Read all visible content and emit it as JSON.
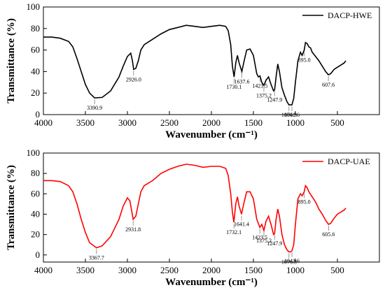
{
  "chart_data": [
    {
      "type": "line",
      "xlabel": "Wavenumber (cm⁻¹)",
      "ylabel": "Transmittance (%)",
      "xlim": [
        4000,
        0
      ],
      "xticks": [
        4000,
        3500,
        3000,
        2500,
        2000,
        1500,
        1000,
        500
      ],
      "ylim": [
        0,
        100
      ],
      "yticks": [
        0,
        20,
        40,
        60,
        80,
        100
      ],
      "legend": "upper right",
      "x": [
        4000,
        3900,
        3800,
        3700,
        3650,
        3600,
        3550,
        3500,
        3450,
        3390.9,
        3300,
        3200,
        3100,
        3050,
        3000,
        2960,
        2940,
        2926,
        2900,
        2870,
        2840,
        2800,
        2700,
        2600,
        2500,
        2400,
        2300,
        2200,
        2100,
        2000,
        1900,
        1830,
        1800,
        1770,
        1750,
        1730.1,
        1710,
        1690,
        1670,
        1637.6,
        1610,
        1580,
        1540,
        1500,
        1460,
        1440,
        1421.5,
        1400,
        1375.2,
        1350,
        1320,
        1290,
        1260,
        1247.9,
        1230,
        1210,
        1190,
        1160,
        1130,
        1100,
        1076.3,
        1060,
        1041.6,
        1020,
        1000,
        970,
        940,
        920,
        895,
        880,
        860,
        840,
        820,
        800,
        760,
        720,
        680,
        640,
        607.6,
        580,
        540,
        500,
        460,
        420,
        400
      ],
      "series": [
        {
          "name": "DACP-HWE",
          "color": "#000000",
          "values": [
            72,
            72,
            71,
            68,
            63,
            52,
            40,
            28,
            20,
            15.5,
            16,
            22,
            35,
            45,
            54,
            57,
            50,
            42,
            43,
            50,
            60,
            65,
            70,
            75,
            79,
            81,
            83,
            82,
            81,
            82,
            83,
            82,
            78,
            65,
            45,
            35,
            48,
            55,
            48,
            40,
            50,
            60,
            61,
            55,
            38,
            35,
            36,
            30,
            27,
            32,
            35,
            28,
            22,
            23,
            35,
            47,
            40,
            25,
            18,
            12,
            9,
            9,
            9,
            15,
            30,
            50,
            58,
            55,
            60,
            67,
            66,
            63,
            62,
            58,
            54,
            50,
            45,
            40,
            37,
            38,
            42,
            44,
            46,
            48,
            50
          ]
        }
      ],
      "annotations": [
        {
          "text": "3390.9",
          "x": 3390.9,
          "y": 15.5
        },
        {
          "text": "2926.0",
          "x": 2926,
          "y": 42
        },
        {
          "text": "1730.1",
          "x": 1730.1,
          "y": 35
        },
        {
          "text": "1637.6",
          "x": 1637.6,
          "y": 40
        },
        {
          "text": "1421.5",
          "x": 1421.5,
          "y": 36
        },
        {
          "text": "1375.2",
          "x": 1375.2,
          "y": 27
        },
        {
          "text": "1247.9",
          "x": 1247.9,
          "y": 23
        },
        {
          "text": "1076.3",
          "x": 1076.3,
          "y": 9
        },
        {
          "text": "1041.6",
          "x": 1041.6,
          "y": 9
        },
        {
          "text": "895.0",
          "x": 895,
          "y": 60
        },
        {
          "text": "607.6",
          "x": 607.6,
          "y": 37
        }
      ]
    },
    {
      "type": "line",
      "xlabel": "Wavenumber (cm⁻¹)",
      "ylabel": "Transmittance (%)",
      "xlim": [
        4000,
        0
      ],
      "xticks": [
        4000,
        3500,
        3000,
        2500,
        2000,
        1500,
        1000,
        500
      ],
      "ylim": [
        -7,
        100
      ],
      "yticks": [
        0,
        20,
        40,
        60,
        80,
        100
      ],
      "legend": "upper right",
      "x": [
        4000,
        3900,
        3800,
        3700,
        3650,
        3600,
        3550,
        3500,
        3450,
        3367.7,
        3300,
        3200,
        3100,
        3050,
        3000,
        2970,
        2931.8,
        2900,
        2870,
        2840,
        2800,
        2700,
        2600,
        2500,
        2400,
        2300,
        2200,
        2100,
        2000,
        1900,
        1830,
        1800,
        1770,
        1750,
        1732.1,
        1710,
        1690,
        1670,
        1641.4,
        1610,
        1580,
        1540,
        1500,
        1460,
        1423.5,
        1400,
        1375.2,
        1350,
        1320,
        1290,
        1260,
        1247.9,
        1230,
        1210,
        1190,
        1160,
        1130,
        1100,
        1076.3,
        1060,
        1041.6,
        1020,
        1000,
        970,
        940,
        920,
        895,
        880,
        860,
        840,
        800,
        760,
        720,
        680,
        640,
        605.6,
        580,
        540,
        500,
        460,
        420,
        400
      ],
      "series": [
        {
          "name": "DACP-UAE",
          "color": "#ff0000",
          "values": [
            73,
            73,
            72,
            68,
            62,
            50,
            35,
            22,
            12,
            7,
            9,
            18,
            35,
            48,
            56,
            53,
            35,
            38,
            50,
            62,
            68,
            73,
            80,
            84,
            87,
            89,
            88,
            86,
            87,
            87,
            85,
            78,
            60,
            42,
            32,
            50,
            57,
            48,
            40,
            52,
            62,
            62,
            55,
            35,
            27,
            30,
            24,
            33,
            38,
            30,
            20,
            21,
            35,
            45,
            38,
            20,
            10,
            5,
            3,
            3,
            4,
            10,
            30,
            55,
            60,
            58,
            62,
            68,
            66,
            62,
            57,
            52,
            45,
            40,
            34,
            30,
            31,
            36,
            40,
            42,
            44,
            46
          ]
        }
      ],
      "annotations": [
        {
          "text": "3367.7",
          "x": 3367.7,
          "y": 7
        },
        {
          "text": "2931.8",
          "x": 2931.8,
          "y": 35
        },
        {
          "text": "1732.1",
          "x": 1732.1,
          "y": 32
        },
        {
          "text": "1641.4",
          "x": 1641.4,
          "y": 40
        },
        {
          "text": "1423.5",
          "x": 1423.5,
          "y": 27
        },
        {
          "text": "1375.2",
          "x": 1375.2,
          "y": 24
        },
        {
          "text": "1247.9",
          "x": 1247.9,
          "y": 21
        },
        {
          "text": "1076.3",
          "x": 1076.3,
          "y": 3
        },
        {
          "text": "1041.6",
          "x": 1041.6,
          "y": 4
        },
        {
          "text": "895.0",
          "x": 895,
          "y": 62
        },
        {
          "text": "605.6",
          "x": 605.6,
          "y": 30
        }
      ]
    }
  ]
}
